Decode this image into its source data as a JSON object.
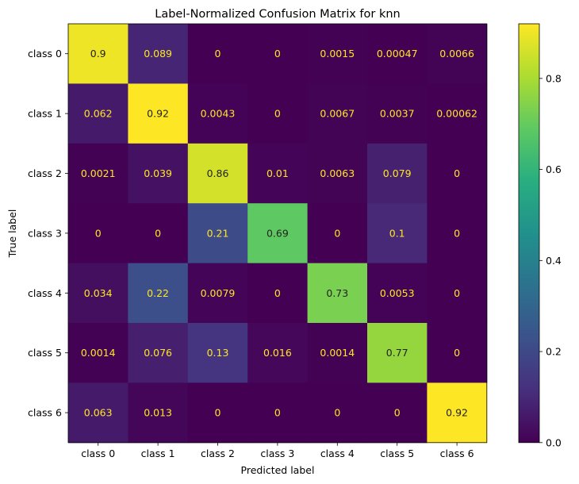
{
  "chart_data": {
    "type": "heatmap",
    "title": "Label-Normalized Confusion Matrix for knn",
    "xlabel": "Predicted label",
    "ylabel": "True label",
    "x_categories": [
      "class 0",
      "class 1",
      "class 2",
      "class 3",
      "class 4",
      "class 5",
      "class 6"
    ],
    "y_categories": [
      "class 0",
      "class 1",
      "class 2",
      "class 3",
      "class 4",
      "class 5",
      "class 6"
    ],
    "values": [
      [
        0.9,
        0.089,
        0,
        0,
        0.0015,
        0.00047,
        0.0066
      ],
      [
        0.062,
        0.92,
        0.0043,
        0,
        0.0067,
        0.0037,
        0.00062
      ],
      [
        0.0021,
        0.039,
        0.86,
        0.01,
        0.0063,
        0.079,
        0
      ],
      [
        0,
        0,
        0.21,
        0.69,
        0,
        0.1,
        0
      ],
      [
        0.034,
        0.22,
        0.0079,
        0,
        0.73,
        0.0053,
        0
      ],
      [
        0.0014,
        0.076,
        0.13,
        0.016,
        0.0014,
        0.77,
        0
      ],
      [
        0.063,
        0.013,
        0,
        0,
        0,
        0,
        0.92
      ]
    ],
    "cell_labels": [
      [
        "0.9",
        "0.089",
        "0",
        "0",
        "0.0015",
        "0.00047",
        "0.0066"
      ],
      [
        "0.062",
        "0.92",
        "0.0043",
        "0",
        "0.0067",
        "0.0037",
        "0.00062"
      ],
      [
        "0.0021",
        "0.039",
        "0.86",
        "0.01",
        "0.0063",
        "0.079",
        "0"
      ],
      [
        "0",
        "0",
        "0.21",
        "0.69",
        "0",
        "0.1",
        "0"
      ],
      [
        "0.034",
        "0.22",
        "0.0079",
        "0",
        "0.73",
        "0.0053",
        "0"
      ],
      [
        "0.0014",
        "0.076",
        "0.13",
        "0.016",
        "0.0014",
        "0.77",
        "0"
      ],
      [
        "0.063",
        "0.013",
        "0",
        "0",
        "0",
        "0",
        "0.92"
      ]
    ],
    "colormap": "viridis",
    "color_range": [
      0,
      0.92
    ],
    "colorbar_ticks": [
      "0.0",
      "0.2",
      "0.4",
      "0.6",
      "0.8"
    ],
    "colorbar_tick_values": [
      0,
      0.2,
      0.4,
      0.6,
      0.8
    ],
    "text_color_dark": "#222222",
    "text_color_light": "#fde725",
    "legend": "colorbar-right",
    "grid": false
  }
}
